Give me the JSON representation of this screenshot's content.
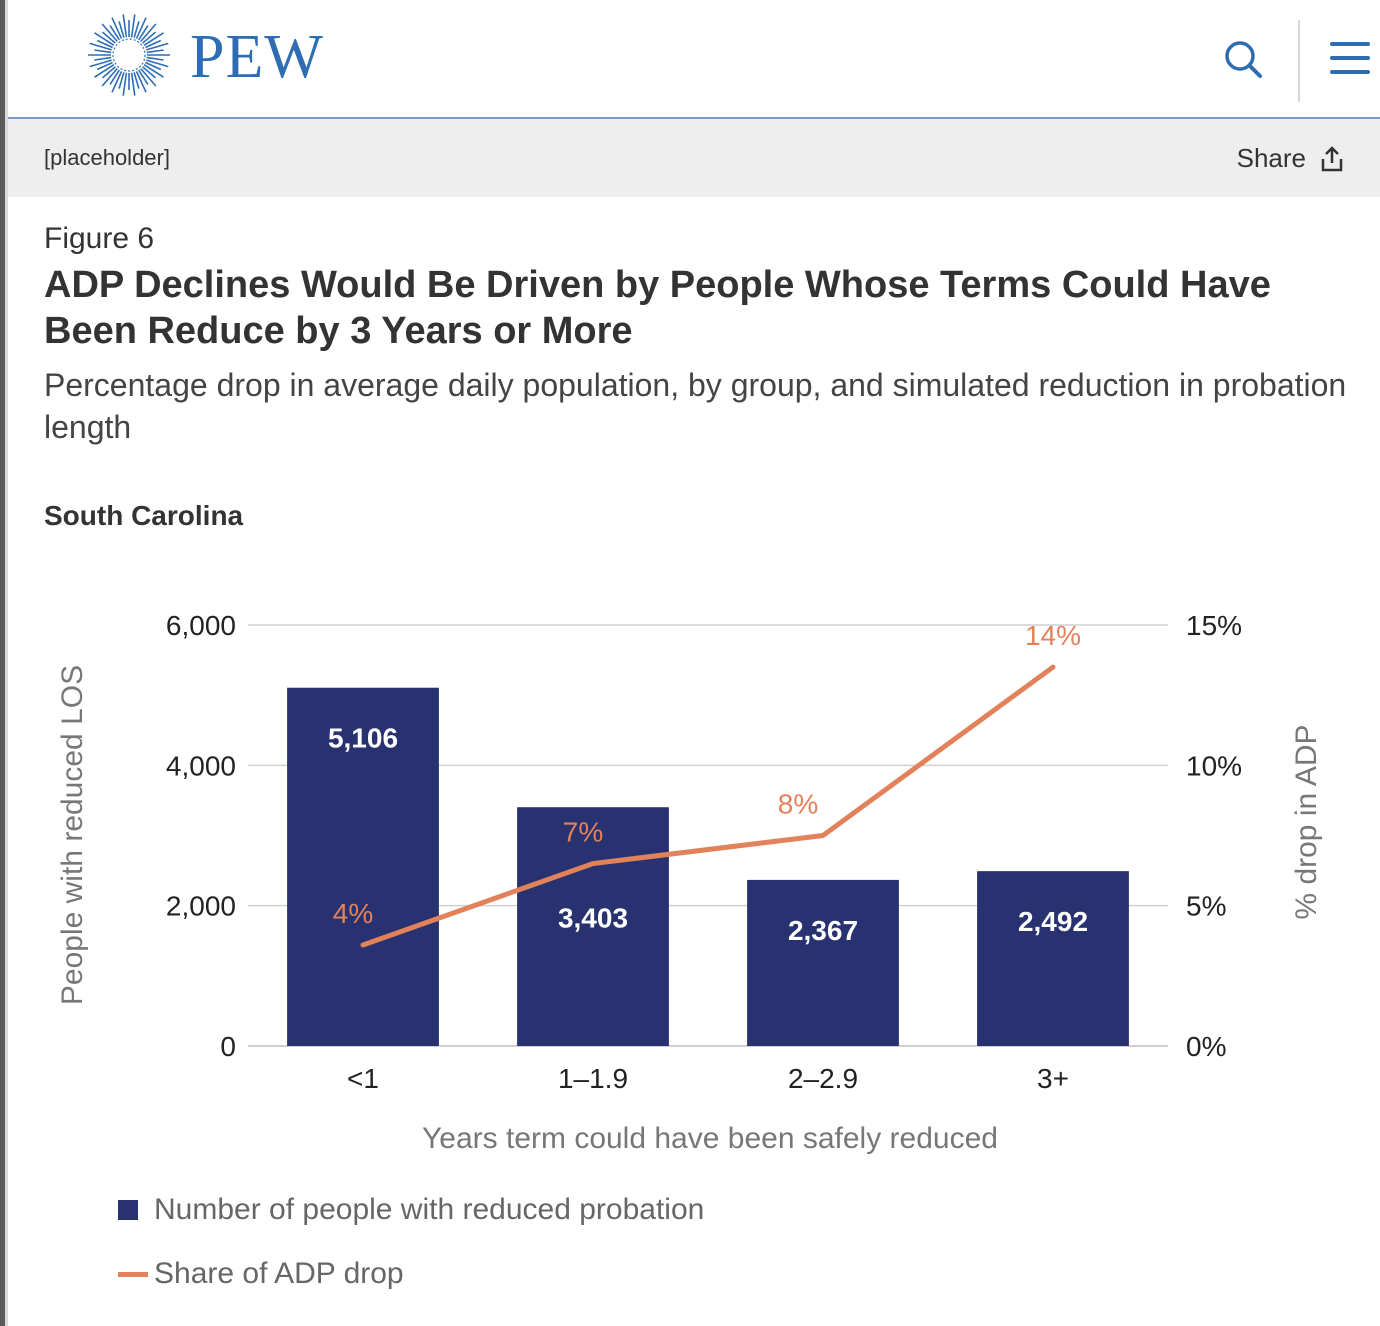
{
  "brand": {
    "name": "PEW",
    "color": "#2f6db3",
    "icon": "pew-sunburst-logo"
  },
  "nav": {
    "search_icon": "search-icon",
    "menu_icon": "hamburger-menu-icon"
  },
  "toolbar": {
    "placeholder": "[placeholder]",
    "share_label": "Share",
    "share_icon": "share-upload-icon"
  },
  "figure": {
    "label": "Figure 6",
    "title": "ADP Declines Would Be Driven by People Whose Terms Could Have Been Reduce by 3 Years or More",
    "subtitle": "Percentage drop in average daily population, by group, and simulated reduction in probation length",
    "panel_title": "South Carolina"
  },
  "chart_data": {
    "type": "bar",
    "categories": [
      "<1",
      "1–1.9",
      "2–2.9",
      "3+"
    ],
    "xlabel": "Years term could have been safely reduced",
    "ylabel": "People with reduced LOS",
    "y2label": "% drop in ADP",
    "ylim": [
      0,
      6000
    ],
    "y2lim": [
      0,
      15
    ],
    "yticks": [
      0,
      2000,
      4000,
      6000
    ],
    "ytick_labels": [
      "0",
      "2,000",
      "4,000",
      "6,000"
    ],
    "y2ticks": [
      0,
      5,
      10,
      15
    ],
    "y2tick_labels": [
      "0%",
      "5%",
      "10%",
      "15%"
    ],
    "grid": true,
    "legend_position": "bottom-left",
    "series": [
      {
        "name": "Number of people with reduced probation",
        "type": "bar",
        "axis": "left",
        "color": "#293270",
        "values": [
          5106,
          3403,
          2367,
          2492
        ],
        "labels": [
          "5,106",
          "3,403",
          "2,367",
          "2,492"
        ]
      },
      {
        "name": "Share of ADP drop",
        "type": "line",
        "axis": "right",
        "color": "#e2825a",
        "values": [
          3.6,
          6.5,
          7.5,
          13.5
        ],
        "labels": [
          "4%",
          "7%",
          "8%",
          "14%"
        ]
      }
    ]
  }
}
